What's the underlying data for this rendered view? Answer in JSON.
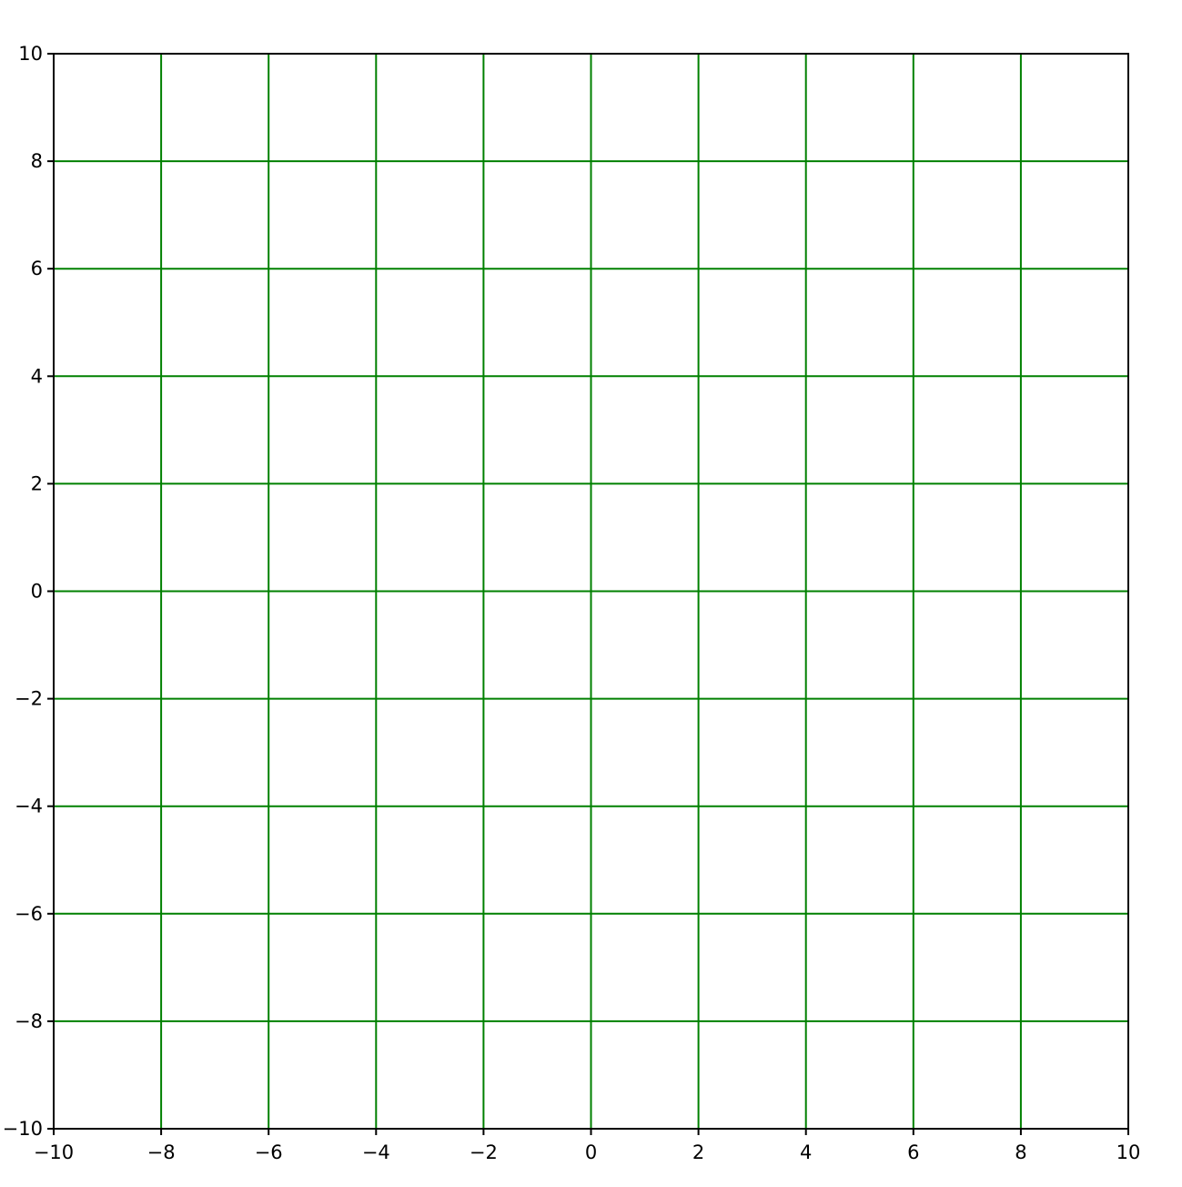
{
  "chart_data": {
    "type": "scatter",
    "title": "",
    "xlabel": "",
    "ylabel": "",
    "xlim": [
      -10,
      10
    ],
    "ylim": [
      -10,
      10
    ],
    "x_ticks": [
      -10,
      -8,
      -6,
      -4,
      -2,
      0,
      2,
      4,
      6,
      8,
      10
    ],
    "y_ticks": [
      -10,
      -8,
      -6,
      -4,
      -2,
      0,
      2,
      4,
      6,
      8,
      10
    ],
    "x_tick_labels": [
      "−10",
      "−8",
      "−6",
      "−4",
      "−2",
      "0",
      "2",
      "4",
      "6",
      "8",
      "10"
    ],
    "y_tick_labels": [
      "−10",
      "−8",
      "−6",
      "−4",
      "−2",
      "0",
      "2",
      "4",
      "6",
      "8",
      "10"
    ],
    "grid": true,
    "grid_color": "#008000",
    "axis_color": "#000000",
    "series": []
  }
}
